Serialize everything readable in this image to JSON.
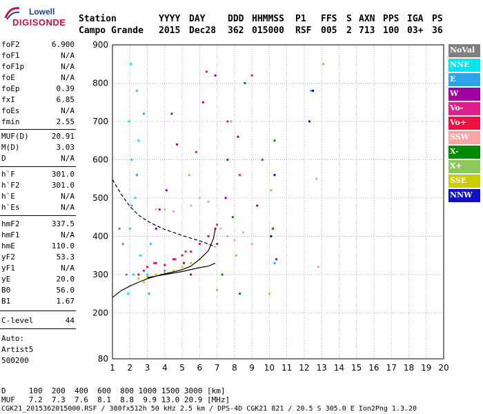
{
  "logo": {
    "line1": "Lowell",
    "line2": "DIGISONDE"
  },
  "header": {
    "labels": [
      "Station",
      "YYYY",
      "DAY",
      "DDD",
      "HHMMSS",
      "P1",
      "FFS",
      "S",
      "AXN",
      "PPS",
      "IGA",
      "PS"
    ],
    "values": [
      "Campo Grande",
      "2015",
      "Dec28",
      "362",
      "015000",
      "RSF",
      "005",
      "2",
      "713",
      "100",
      "03+",
      "36"
    ]
  },
  "params": [
    {
      "name": "foF2",
      "value": "6.900"
    },
    {
      "name": "foF1",
      "value": "N/A"
    },
    {
      "name": "foF1p",
      "value": "N/A"
    },
    {
      "name": "foE",
      "value": "N/A"
    },
    {
      "name": "foEp",
      "value": "0.39"
    },
    {
      "name": "fxI",
      "value": "6.85"
    },
    {
      "name": "foEs",
      "value": "N/A"
    },
    {
      "name": "fmin",
      "value": "2.55"
    },
    {
      "name": "MUF(D)",
      "value": "20.91"
    },
    {
      "name": "M(D)",
      "value": "3.03"
    },
    {
      "name": "D",
      "value": "N/A"
    },
    {
      "name": "h`F",
      "value": "301.0"
    },
    {
      "name": "h`F2",
      "value": "301.0"
    },
    {
      "name": "h`E",
      "value": "N/A"
    },
    {
      "name": "h`Es",
      "value": "N/A"
    },
    {
      "name": "hmF2",
      "value": "337.5"
    },
    {
      "name": "hmF1",
      "value": "N/A"
    },
    {
      "name": "hmE",
      "value": "110.0"
    },
    {
      "name": "yF2",
      "value": "53.3"
    },
    {
      "name": "yF1",
      "value": "N/A"
    },
    {
      "name": "yE",
      "value": "20.0"
    },
    {
      "name": "B0",
      "value": "56.0"
    },
    {
      "name": "B1",
      "value": "1.67"
    },
    {
      "name": "C-level",
      "value": "44"
    }
  ],
  "auto": [
    "Auto:",
    "Artist5",
    "500200"
  ],
  "legend": [
    {
      "label": "NoVal",
      "color": "#808080"
    },
    {
      "label": "NNE",
      "color": "#00e5ee"
    },
    {
      "label": "E",
      "color": "#2fa3ea"
    },
    {
      "label": "W",
      "color": "#a000a0"
    },
    {
      "label": "Vo-",
      "color": "#e0208a"
    },
    {
      "label": "Vo+",
      "color": "#ee1040"
    },
    {
      "label": "SSW",
      "color": "#f7a5a5"
    },
    {
      "label": "X-",
      "color": "#008a00"
    },
    {
      "label": "X+",
      "color": "#8cc85a"
    },
    {
      "label": "SSE",
      "color": "#cccc00"
    },
    {
      "label": "NNW",
      "color": "#1010c8"
    }
  ],
  "bottom": {
    "d_row": "D     100  200  400  600  800 1000 1500 3000 [km]",
    "muf_row": "MUF   7.2  7.3  7.6  8.1  8.8  9.9 13.0 20.9 [MHz]",
    "footer": "CGK21_2015362015000.RSF / 380fx512h 50 kHz 2.5 km / DPS-4D CGK21 821 / 20.5 S 305.0 E Ion2Png 1.3.20"
  },
  "chart_data": {
    "type": "scatter",
    "xlim": [
      1,
      20
    ],
    "ylim": [
      80,
      900
    ],
    "xticks": [
      1,
      2,
      3,
      4,
      5,
      6,
      7,
      8,
      9,
      10,
      11,
      12,
      13,
      14,
      15,
      16,
      17,
      18,
      19,
      20
    ],
    "yticks": [
      200,
      300,
      400,
      500,
      600,
      700,
      800,
      900
    ],
    "extra_ytick": 80,
    "grid": true,
    "series": [
      {
        "name": "NNE",
        "color": "#00e5ee",
        "points": [
          [
            1.9,
            250
          ],
          [
            2.0,
            420
          ],
          [
            2.1,
            600
          ],
          [
            1.95,
            700
          ],
          [
            2.05,
            850
          ],
          [
            2.2,
            300
          ],
          [
            2.3,
            500
          ],
          [
            2.4,
            780
          ],
          [
            2.5,
            650
          ],
          [
            2.6,
            350
          ],
          [
            3.0,
            300
          ],
          [
            3.2,
            380
          ]
        ]
      },
      {
        "name": "E",
        "color": "#2fa3ea",
        "points": [
          [
            2.1,
            480
          ],
          [
            2.4,
            560
          ],
          [
            2.8,
            720
          ],
          [
            3.1,
            250
          ],
          [
            3.5,
            420
          ],
          [
            4.0,
            310
          ],
          [
            10.3,
            330
          ],
          [
            12.4,
            780
          ]
        ]
      },
      {
        "name": "W",
        "color": "#a000a0",
        "points": [
          [
            3.5,
            420
          ],
          [
            3.7,
            470
          ],
          [
            4.1,
            520
          ],
          [
            4.4,
            720
          ],
          [
            4.7,
            640
          ],
          [
            5.1,
            330
          ],
          [
            5.5,
            300
          ],
          [
            6.2,
            750
          ],
          [
            6.9,
            820
          ],
          [
            7.5,
            500
          ],
          [
            8.2,
            660
          ],
          [
            9.3,
            480
          ],
          [
            10.4,
            340
          ]
        ]
      },
      {
        "name": "Vo-",
        "color": "#e0208a",
        "points": [
          [
            2.8,
            310
          ],
          [
            3.4,
            330
          ],
          [
            4.0,
            325
          ],
          [
            4.6,
            340
          ],
          [
            5.2,
            360
          ],
          [
            5.8,
            620
          ],
          [
            6.4,
            830
          ],
          [
            7.0,
            430
          ],
          [
            7.6,
            700
          ],
          [
            8.3,
            560
          ],
          [
            9.0,
            820
          ],
          [
            9.6,
            600
          ]
        ]
      },
      {
        "name": "Vo+",
        "color": "#ee1040",
        "points": [
          [
            2.5,
            300
          ],
          [
            3.0,
            320
          ],
          [
            3.5,
            330
          ],
          [
            4.0,
            325
          ],
          [
            4.5,
            340
          ],
          [
            5.0,
            350
          ],
          [
            5.5,
            360
          ],
          [
            6.0,
            380
          ],
          [
            6.5,
            400
          ],
          [
            6.9,
            420
          ],
          [
            7.0,
            380
          ]
        ]
      },
      {
        "name": "SSW",
        "color": "#f7a5a5",
        "points": [
          [
            3.5,
            470
          ],
          [
            4.0,
            470
          ],
          [
            4.5,
            465
          ],
          [
            5.5,
            480
          ],
          [
            6.0,
            500
          ],
          [
            6.5,
            490
          ],
          [
            7.2,
            420
          ],
          [
            7.6,
            400
          ],
          [
            8.0,
            390
          ],
          [
            8.5,
            410
          ],
          [
            9.0,
            380
          ],
          [
            12.7,
            550
          ],
          [
            12.8,
            320
          ]
        ]
      },
      {
        "name": "X-",
        "color": "#008a00",
        "points": [
          [
            7.3,
            300
          ],
          [
            7.6,
            600
          ],
          [
            7.9,
            450
          ],
          [
            8.3,
            250
          ],
          [
            8.6,
            800
          ],
          [
            10.2,
            420
          ],
          [
            10.3,
            650
          ]
        ]
      },
      {
        "name": "X+",
        "color": "#8cc85a",
        "points": [
          [
            5.4,
            560
          ],
          [
            7.0,
            260
          ],
          [
            7.8,
            700
          ],
          [
            8.1,
            350
          ],
          [
            10.1,
            520
          ],
          [
            13.1,
            850
          ]
        ]
      },
      {
        "name": "SSE",
        "color": "#cccc00",
        "points": [
          [
            2.5,
            290
          ],
          [
            3.0,
            295
          ],
          [
            3.5,
            300
          ],
          [
            4.0,
            305
          ],
          [
            4.5,
            310
          ],
          [
            5.0,
            320
          ],
          [
            5.5,
            330
          ],
          [
            6.0,
            340
          ],
          [
            2.8,
            280
          ],
          [
            3.8,
            300
          ],
          [
            10.0,
            250
          ]
        ]
      },
      {
        "name": "NNW",
        "color": "#1010c8",
        "points": [
          [
            10.1,
            400
          ],
          [
            10.3,
            560
          ],
          [
            12.3,
            700
          ],
          [
            12.5,
            780
          ]
        ]
      },
      {
        "name": "NoVal",
        "color": "#808080",
        "points": [
          [
            1.4,
            420
          ],
          [
            1.6,
            380
          ],
          [
            1.8,
            300
          ]
        ]
      }
    ],
    "curves": [
      {
        "style": "dashed",
        "points": [
          [
            1.0,
            548
          ],
          [
            1.5,
            510
          ],
          [
            2.0,
            478
          ],
          [
            2.5,
            455
          ],
          [
            3.0,
            440
          ],
          [
            3.5,
            428
          ],
          [
            4.0,
            418
          ],
          [
            4.5,
            410
          ],
          [
            5.0,
            402
          ],
          [
            5.5,
            395
          ],
          [
            6.0,
            388
          ],
          [
            6.5,
            380
          ],
          [
            6.9,
            372
          ]
        ]
      },
      {
        "style": "solid",
        "points": [
          [
            1.0,
            240
          ],
          [
            1.5,
            258
          ],
          [
            2.0,
            270
          ],
          [
            2.5,
            280
          ],
          [
            3.0,
            289
          ],
          [
            3.5,
            296
          ],
          [
            4.0,
            302
          ],
          [
            4.5,
            307
          ],
          [
            5.0,
            313
          ],
          [
            5.5,
            322
          ],
          [
            6.0,
            340
          ],
          [
            6.5,
            362
          ],
          [
            6.8,
            395
          ],
          [
            6.9,
            420
          ]
        ]
      },
      {
        "style": "solid",
        "points": [
          [
            3.0,
            292
          ],
          [
            4.0,
            300
          ],
          [
            5.0,
            308
          ],
          [
            6.0,
            318
          ],
          [
            6.5,
            322
          ],
          [
            6.9,
            330
          ]
        ]
      }
    ]
  }
}
